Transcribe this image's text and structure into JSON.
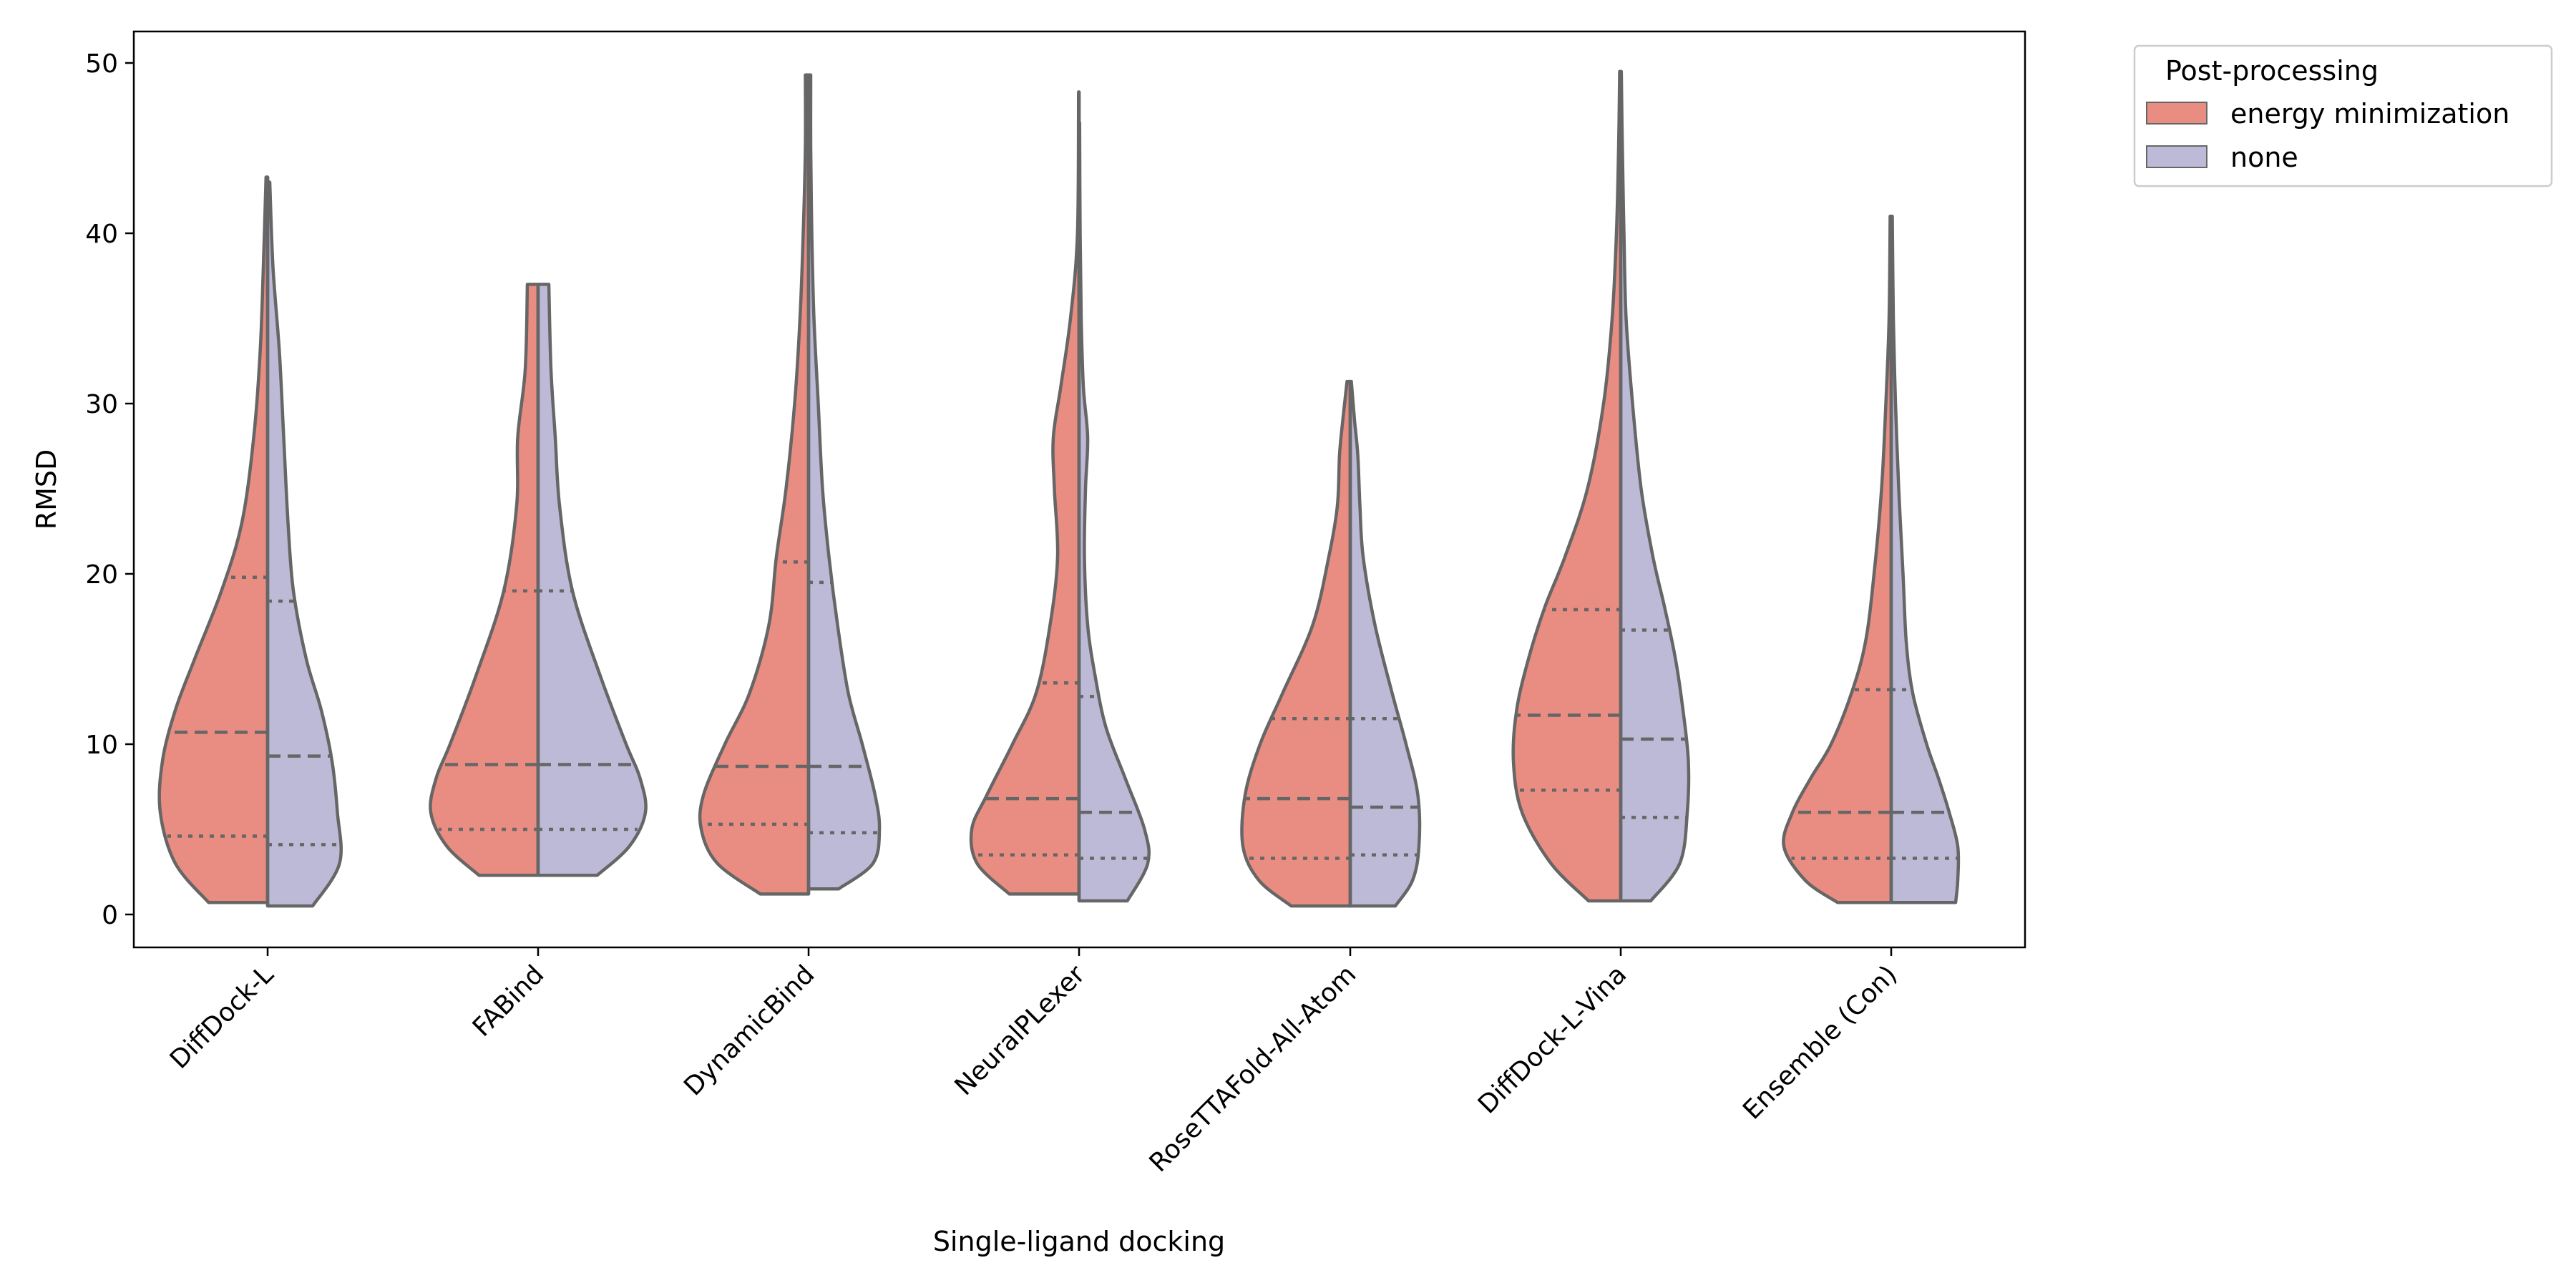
{
  "chart_data": {
    "type": "violin",
    "split": true,
    "xlabel": "Single-ligand docking",
    "ylabel": "RMSD",
    "ylim": [
      -2,
      52
    ],
    "yticks": [
      0,
      10,
      20,
      30,
      40,
      50
    ],
    "categories": [
      "DiffDock-L",
      "FABind",
      "DynamicBind",
      "NeuralPLexer",
      "RoseTTAFold-All-Atom",
      "DiffDock-L-Vina",
      "Ensemble (Con)"
    ],
    "legend": {
      "title": "Post-processing",
      "placement": "outside top-right",
      "entries": [
        {
          "label": "energy minimization",
          "color": "#e98d82"
        },
        {
          "label": "none",
          "color": "#bdbad8"
        }
      ]
    },
    "series": [
      {
        "name": "energy minimization",
        "color": "#e98d82",
        "side": "left",
        "violins": [
          {
            "min": 0.7,
            "max": 43.3,
            "q1": 4.6,
            "median": 10.7,
            "q3": 19.8,
            "profile": [
              [
                0.7,
                0.55
              ],
              [
                3,
                0.86
              ],
              [
                6,
                1.0
              ],
              [
                9,
                0.98
              ],
              [
                12,
                0.86
              ],
              [
                15,
                0.68
              ],
              [
                19,
                0.43
              ],
              [
                23,
                0.24
              ],
              [
                28,
                0.13
              ],
              [
                33,
                0.07
              ],
              [
                38,
                0.04
              ],
              [
                43.3,
                0.015
              ]
            ]
          },
          {
            "min": 2.3,
            "max": 37.0,
            "q1": 5.0,
            "median": 8.8,
            "q3": 19.0,
            "profile": [
              [
                2.3,
                0.55
              ],
              [
                4,
                0.85
              ],
              [
                6,
                1.0
              ],
              [
                8,
                0.95
              ],
              [
                10,
                0.82
              ],
              [
                14,
                0.58
              ],
              [
                19,
                0.32
              ],
              [
                24,
                0.2
              ],
              [
                28,
                0.19
              ],
              [
                32,
                0.12
              ],
              [
                37,
                0.1
              ]
            ]
          },
          {
            "min": 1.2,
            "max": 49.3,
            "q1": 5.3,
            "median": 8.7,
            "q3": 20.7,
            "profile": [
              [
                1.2,
                0.45
              ],
              [
                3,
                0.85
              ],
              [
                5,
                1.0
              ],
              [
                7,
                0.98
              ],
              [
                10,
                0.78
              ],
              [
                13,
                0.55
              ],
              [
                17,
                0.37
              ],
              [
                21,
                0.3
              ],
              [
                25,
                0.21
              ],
              [
                30,
                0.13
              ],
              [
                35,
                0.08
              ],
              [
                40,
                0.05
              ],
              [
                45,
                0.03
              ],
              [
                49.3,
                0.03
              ]
            ]
          },
          {
            "min": 1.2,
            "max": 48.3,
            "q1": 3.5,
            "median": 6.8,
            "q3": 13.6,
            "profile": [
              [
                1.2,
                0.65
              ],
              [
                3,
                0.95
              ],
              [
                5,
                1.0
              ],
              [
                7,
                0.86
              ],
              [
                10,
                0.62
              ],
              [
                13,
                0.4
              ],
              [
                17,
                0.27
              ],
              [
                21,
                0.2
              ],
              [
                25,
                0.23
              ],
              [
                28,
                0.24
              ],
              [
                31,
                0.17
              ],
              [
                35,
                0.08
              ],
              [
                40,
                0.015
              ],
              [
                48.3,
                0.005
              ]
            ]
          },
          {
            "min": 0.5,
            "max": 31.3,
            "q1": 3.3,
            "median": 6.8,
            "q3": 11.5,
            "profile": [
              [
                0.5,
                0.55
              ],
              [
                2,
                0.85
              ],
              [
                4,
                1.0
              ],
              [
                7,
                0.98
              ],
              [
                10,
                0.84
              ],
              [
                13,
                0.63
              ],
              [
                17,
                0.35
              ],
              [
                21,
                0.2
              ],
              [
                24,
                0.12
              ],
              [
                27,
                0.1
              ],
              [
                29,
                0.07
              ],
              [
                31.3,
                0.03
              ]
            ]
          },
          {
            "min": 0.8,
            "max": 49.5,
            "q1": 7.3,
            "median": 11.7,
            "q3": 17.9,
            "profile": [
              [
                0.8,
                0.3
              ],
              [
                3,
                0.65
              ],
              [
                6,
                0.92
              ],
              [
                9,
                1.0
              ],
              [
                12,
                0.97
              ],
              [
                15,
                0.86
              ],
              [
                18,
                0.71
              ],
              [
                21,
                0.52
              ],
              [
                25,
                0.31
              ],
              [
                30,
                0.16
              ],
              [
                35,
                0.08
              ],
              [
                40,
                0.04
              ],
              [
                45,
                0.02
              ],
              [
                49.5,
                0.01
              ]
            ]
          },
          {
            "min": 0.7,
            "max": 41.0,
            "q1": 3.3,
            "median": 6.0,
            "q3": 13.2,
            "profile": [
              [
                0.7,
                0.5
              ],
              [
                2,
                0.8
              ],
              [
                4,
                1.0
              ],
              [
                6,
                0.92
              ],
              [
                8,
                0.75
              ],
              [
                10,
                0.56
              ],
              [
                13,
                0.37
              ],
              [
                16,
                0.24
              ],
              [
                20,
                0.16
              ],
              [
                25,
                0.09
              ],
              [
                30,
                0.05
              ],
              [
                35,
                0.02
              ],
              [
                41,
                0.01
              ]
            ]
          }
        ]
      },
      {
        "name": "none",
        "color": "#bdbad8",
        "side": "right",
        "violins": [
          {
            "min": 0.5,
            "max": 43.0,
            "q1": 4.1,
            "median": 9.3,
            "q3": 18.4,
            "profile": [
              [
                0.5,
                0.42
              ],
              [
                3,
                0.67
              ],
              [
                6,
                0.65
              ],
              [
                9,
                0.6
              ],
              [
                12,
                0.5
              ],
              [
                15,
                0.36
              ],
              [
                19,
                0.24
              ],
              [
                23,
                0.19
              ],
              [
                28,
                0.15
              ],
              [
                33,
                0.11
              ],
              [
                38,
                0.05
              ],
              [
                43,
                0.02
              ]
            ]
          },
          {
            "min": 2.3,
            "max": 37.0,
            "q1": 5.0,
            "median": 8.8,
            "q3": 19.0,
            "profile": [
              [
                2.3,
                0.55
              ],
              [
                4,
                0.85
              ],
              [
                6,
                1.0
              ],
              [
                8,
                0.95
              ],
              [
                10,
                0.82
              ],
              [
                14,
                0.58
              ],
              [
                19,
                0.32
              ],
              [
                24,
                0.2
              ],
              [
                28,
                0.16
              ],
              [
                32,
                0.12
              ],
              [
                37,
                0.1
              ]
            ]
          },
          {
            "min": 1.5,
            "max": 49.3,
            "q1": 4.8,
            "median": 8.7,
            "q3": 19.5,
            "profile": [
              [
                1.5,
                0.28
              ],
              [
                3,
                0.6
              ],
              [
                5,
                0.66
              ],
              [
                7,
                0.62
              ],
              [
                10,
                0.5
              ],
              [
                13,
                0.37
              ],
              [
                17,
                0.27
              ],
              [
                21,
                0.19
              ],
              [
                25,
                0.13
              ],
              [
                30,
                0.09
              ],
              [
                35,
                0.05
              ],
              [
                40,
                0.03
              ],
              [
                45,
                0.02
              ],
              [
                49.3,
                0.02
              ]
            ]
          },
          {
            "min": 0.8,
            "max": 46.5,
            "q1": 3.3,
            "median": 6.0,
            "q3": 12.8,
            "profile": [
              [
                0.8,
                0.45
              ],
              [
                3,
                0.64
              ],
              [
                5,
                0.61
              ],
              [
                8,
                0.43
              ],
              [
                11,
                0.25
              ],
              [
                14,
                0.15
              ],
              [
                17,
                0.08
              ],
              [
                21,
                0.05
              ],
              [
                25,
                0.06
              ],
              [
                28,
                0.08
              ],
              [
                31,
                0.04
              ],
              [
                35,
                0.02
              ],
              [
                40,
                0.01
              ],
              [
                46.5,
                0.005
              ]
            ]
          },
          {
            "min": 0.5,
            "max": 31.3,
            "q1": 3.5,
            "median": 6.3,
            "q3": 11.5,
            "profile": [
              [
                0.5,
                0.42
              ],
              [
                2,
                0.58
              ],
              [
                4,
                0.64
              ],
              [
                7,
                0.63
              ],
              [
                10,
                0.52
              ],
              [
                13,
                0.39
              ],
              [
                17,
                0.23
              ],
              [
                21,
                0.12
              ],
              [
                24,
                0.09
              ],
              [
                27,
                0.07
              ],
              [
                29,
                0.04
              ],
              [
                31.3,
                0.01
              ]
            ]
          },
          {
            "min": 0.8,
            "max": 49.5,
            "q1": 5.7,
            "median": 10.3,
            "q3": 16.7,
            "profile": [
              [
                0.8,
                0.28
              ],
              [
                3,
                0.55
              ],
              [
                6,
                0.62
              ],
              [
                9,
                0.63
              ],
              [
                12,
                0.58
              ],
              [
                15,
                0.51
              ],
              [
                18,
                0.41
              ],
              [
                21,
                0.3
              ],
              [
                25,
                0.19
              ],
              [
                30,
                0.11
              ],
              [
                35,
                0.05
              ],
              [
                40,
                0.03
              ],
              [
                45,
                0.015
              ],
              [
                49.5,
                0.005
              ]
            ]
          },
          {
            "min": 0.7,
            "max": 41.0,
            "q1": 3.3,
            "median": 6.0,
            "q3": 13.2,
            "profile": [
              [
                0.7,
                0.6
              ],
              [
                2,
                0.62
              ],
              [
                4,
                0.62
              ],
              [
                6,
                0.54
              ],
              [
                8,
                0.44
              ],
              [
                10,
                0.33
              ],
              [
                13,
                0.2
              ],
              [
                16,
                0.14
              ],
              [
                20,
                0.11
              ],
              [
                25,
                0.07
              ],
              [
                30,
                0.04
              ],
              [
                35,
                0.02
              ],
              [
                41,
                0.01
              ]
            ]
          }
        ]
      }
    ]
  }
}
